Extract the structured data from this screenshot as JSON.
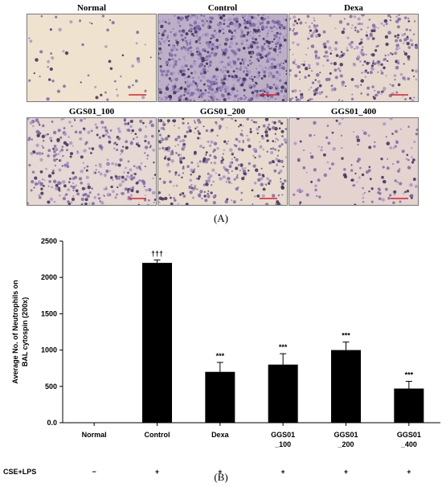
{
  "panel_a": {
    "letter": "(A)",
    "images": [
      {
        "label": "Normal",
        "density": 60,
        "bg": "#efe3cf"
      },
      {
        "label": "Control",
        "density": 900,
        "bg": "#bdb0c6"
      },
      {
        "label": "Dexa",
        "density": 330,
        "bg": "#e8d9cf"
      },
      {
        "label": "GGS01_100",
        "density": 360,
        "bg": "#e6d8d2"
      },
      {
        "label": "GGS01_200",
        "density": 380,
        "bg": "#e9dccf"
      },
      {
        "label": "GGS01_400",
        "density": 150,
        "bg": "#e4d3cf"
      }
    ]
  },
  "panel_b": {
    "letter": "(B)"
  },
  "chart_data": {
    "type": "bar",
    "categories": [
      "Normal",
      "Control",
      "Dexa",
      "GGS01\n_100",
      "GGS01\n_200",
      "GGS01\n_400"
    ],
    "values": [
      0,
      2200,
      700,
      800,
      1000,
      470
    ],
    "errors": [
      0,
      40,
      130,
      150,
      110,
      100
    ],
    "annotations": [
      "",
      "†††",
      "***",
      "***",
      "***",
      "***"
    ],
    "ylabel": "Average No. of Neutrophils on\nBAL cytospin (200x)",
    "xlabel": "",
    "ylim": [
      0,
      2500
    ],
    "yticks": [
      "0.0",
      "500",
      "1000",
      "1500",
      "2000",
      "2500"
    ],
    "row_label": "CSE+LPS",
    "row_values": [
      "−",
      "+",
      "+",
      "+",
      "+",
      "+"
    ],
    "bar_color": "#000000",
    "grid": false
  }
}
